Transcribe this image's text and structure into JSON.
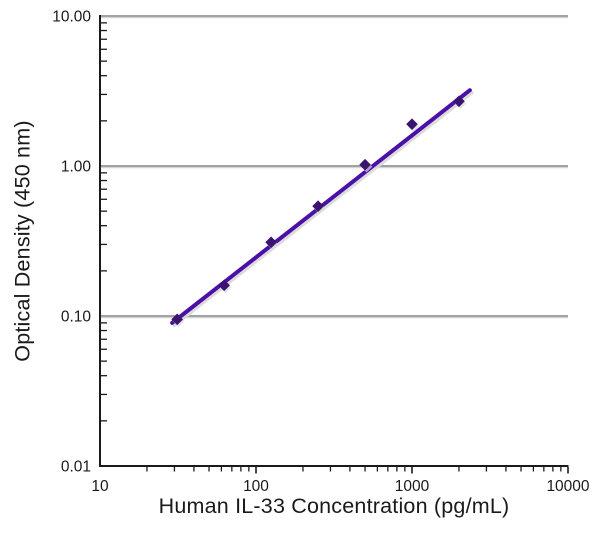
{
  "chart_data": {
    "type": "line",
    "subtype": "log-log ELISA standard curve, single series with diamond markers and fitted trend line",
    "title": "",
    "xlabel": "Human IL-33 Concentration (pg/mL)",
    "ylabel": "Optical Density (450 nm)",
    "x_scale": "log",
    "y_scale": "log",
    "xlim": [
      10,
      10000
    ],
    "ylim": [
      0.01,
      10
    ],
    "x_ticks": [
      10,
      100,
      1000,
      10000
    ],
    "x_tick_labels": [
      "10",
      "100",
      "1000",
      "10000"
    ],
    "y_ticks": [
      10,
      1,
      0.1,
      0.01
    ],
    "y_tick_labels": [
      "10.00",
      "1.00",
      "0.10",
      "0.01"
    ],
    "gridlines_y": [
      10,
      1,
      0.1
    ],
    "grid": "horizontal-only",
    "legend": "none",
    "series": [
      {
        "marker": "diamond",
        "x": [
          31.25,
          62.5,
          125,
          250,
          500,
          1000,
          2000
        ],
        "y": [
          0.095,
          0.16,
          0.31,
          0.54,
          1.02,
          1.9,
          2.7
        ]
      }
    ],
    "trendline": {
      "x_start": 29,
      "y_start": 0.09,
      "x_end": 2350,
      "y_end": 3.2
    },
    "colors": {
      "trend_line": "#4a10a8",
      "marker": "#3a1470",
      "gridline": "#949494",
      "gridline_shadow": "#d4d4d4",
      "axis": "#1a1a1a",
      "text": "#1a1a1a",
      "background": "#ffffff"
    }
  }
}
